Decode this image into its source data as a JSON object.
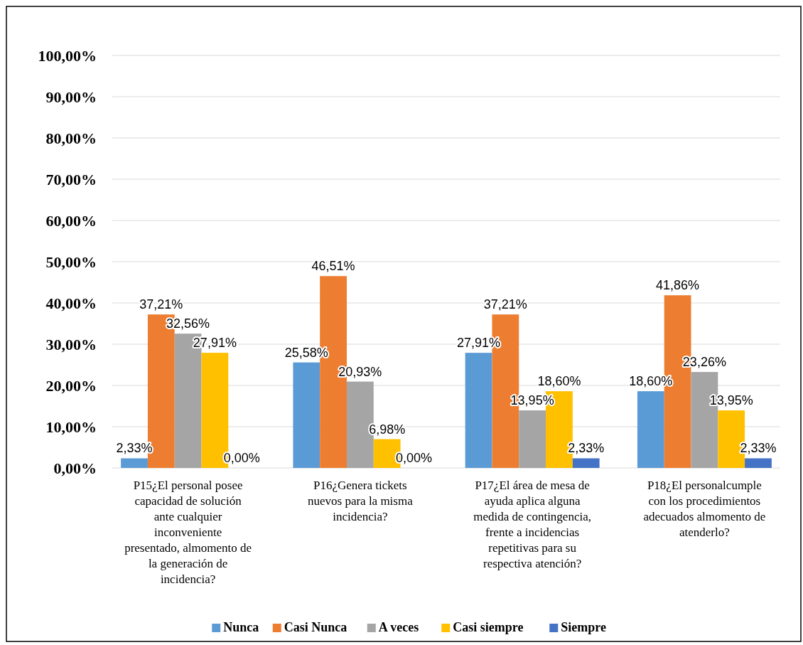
{
  "chart_data": {
    "type": "bar",
    "categories": [
      "P15¿El personal posee capacidad de solución ante cualquier inconveniente presentado, almomento de la generación de incidencia?",
      "P16¿Genera tickets nuevos para la misma incidencia?",
      "P17¿El área de mesa de ayuda aplica alguna medida de contingencia, frente a incidencias repetitivas para su respectiva atención?",
      "P18¿El personalcumple con los procedimientos adecuados almomento de atenderlo?"
    ],
    "series": [
      {
        "name": "Nunca",
        "color": "#5b9bd5",
        "values": [
          2.33,
          25.58,
          27.91,
          18.6
        ],
        "value_labels": [
          "2,33%",
          "25,58%",
          "27,91%",
          "18,60%"
        ]
      },
      {
        "name": "Casi Nunca",
        "color": "#ed7d31",
        "values": [
          37.21,
          46.51,
          37.21,
          41.86
        ],
        "value_labels": [
          "37,21%",
          "46,51%",
          "37,21%",
          "41,86%"
        ]
      },
      {
        "name": "A veces",
        "color": "#a5a5a5",
        "values": [
          32.56,
          20.93,
          13.95,
          23.26
        ],
        "value_labels": [
          "32,56%",
          "20,93%",
          "13,95%",
          "23,26%"
        ]
      },
      {
        "name": "Casi siempre",
        "color": "#ffc000",
        "values": [
          27.91,
          6.98,
          18.6,
          13.95
        ],
        "value_labels": [
          "27,91%",
          "6,98%",
          "18,60%",
          "13,95%"
        ]
      },
      {
        "name": "Siempre",
        "color": "#4472c4",
        "values": [
          0,
          0,
          2.33,
          2.33
        ],
        "value_labels": [
          "0,00%",
          "0,00%",
          "2,33%",
          "2,33%"
        ]
      }
    ],
    "ylim": [
      0,
      100
    ],
    "yticks": [
      {
        "value": 0,
        "label": "0,00%"
      },
      {
        "value": 10,
        "label": "10,00%"
      },
      {
        "value": 20,
        "label": "20,00%"
      },
      {
        "value": 30,
        "label": "30,00%"
      },
      {
        "value": 40,
        "label": "40,00%"
      },
      {
        "value": 50,
        "label": "50,00%"
      },
      {
        "value": 60,
        "label": "60,00%"
      },
      {
        "value": 70,
        "label": "70,00%"
      },
      {
        "value": 80,
        "label": "80,00%"
      },
      {
        "value": 90,
        "label": "90,00%"
      },
      {
        "value": 100,
        "label": "100,00%"
      }
    ],
    "grid": "y",
    "legend": "bottom"
  }
}
